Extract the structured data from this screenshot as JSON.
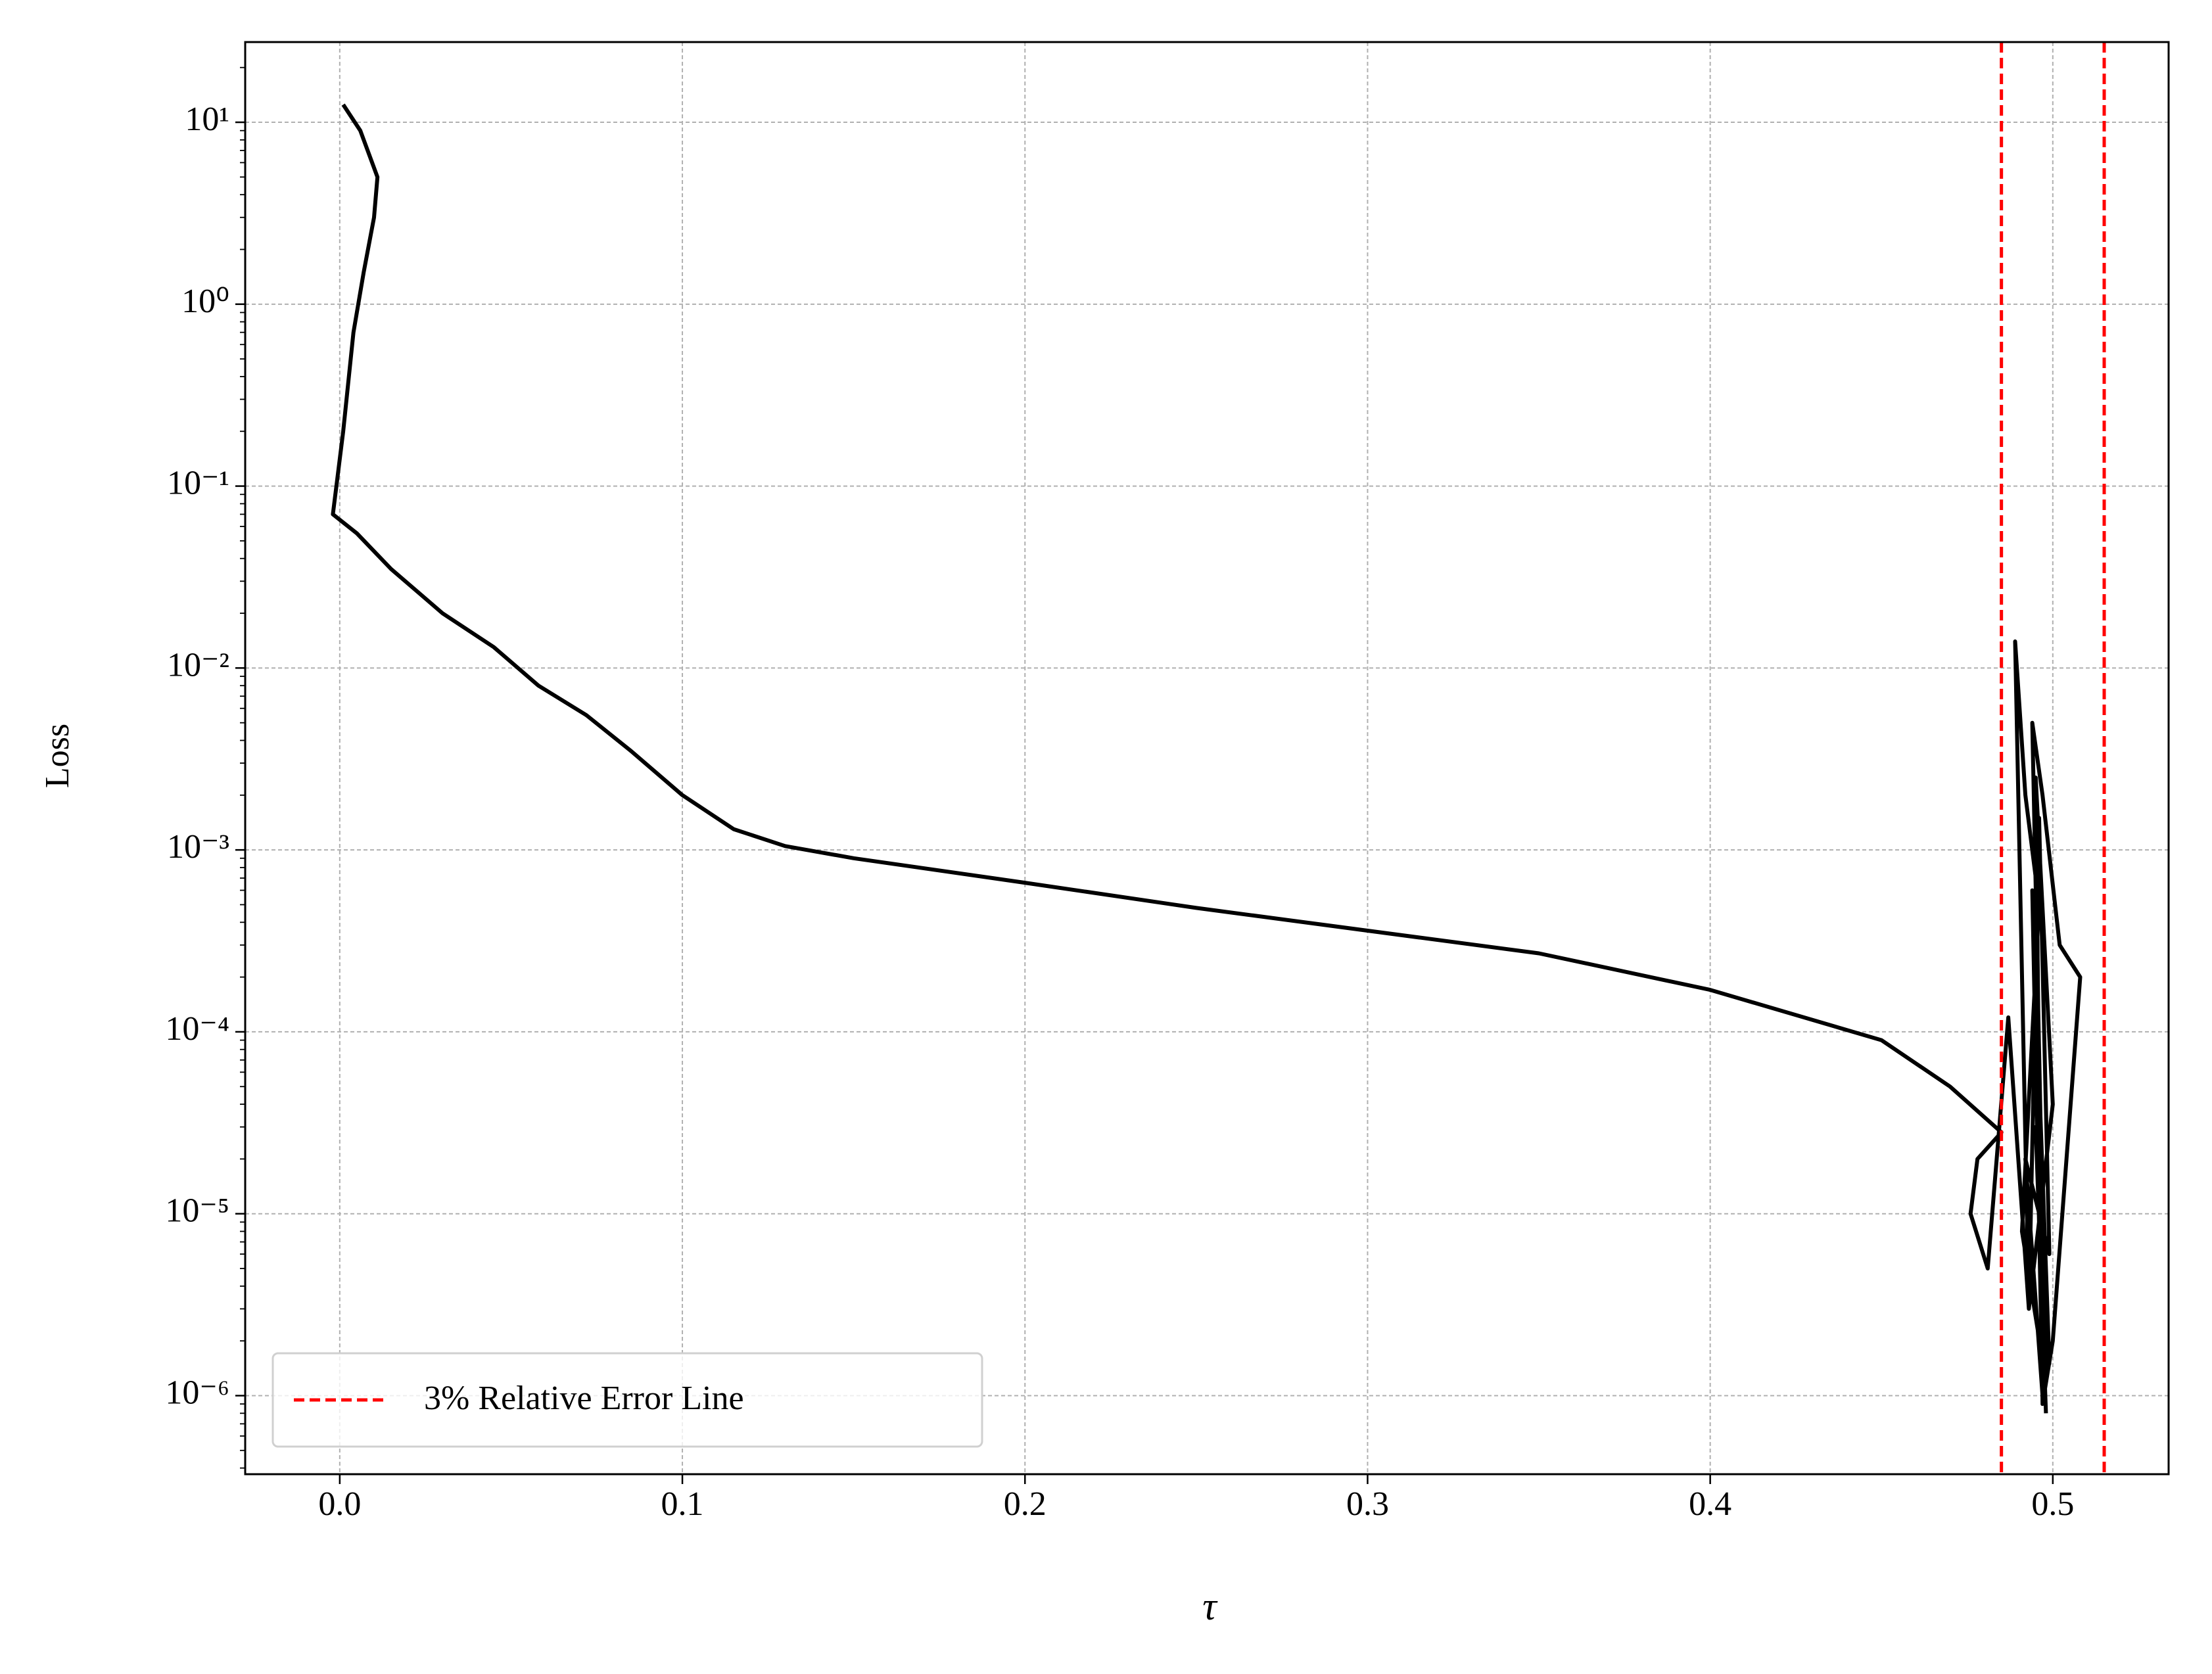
{
  "chart_data": {
    "type": "line",
    "x_label": "τ",
    "y_label": "Loss",
    "log_y": true,
    "grid": true,
    "legend_position": "lower left",
    "xlim": [
      -0.0276,
      0.5338
    ],
    "ylim": [
      3.7e-07,
      27.6
    ],
    "xticks": [
      {
        "value": 0,
        "label": "0.0"
      },
      0.1,
      0.2,
      0.3,
      0.4,
      0.5
    ],
    "yticks": [
      {
        "value": 1e-06,
        "label": "10⁻⁶"
      },
      {
        "value": 1e-05,
        "label": "10⁻⁵"
      },
      {
        "value": 0.0001,
        "label": "10⁻⁴"
      },
      {
        "value": 0.001,
        "label": "10⁻³"
      },
      {
        "value": 0.01,
        "label": "10⁻²"
      },
      {
        "value": 0.1,
        "label": "10⁻¹"
      },
      {
        "value": 1,
        "label": "10⁰"
      },
      {
        "value": 10,
        "label": "10¹"
      }
    ],
    "series": [
      {
        "color": "#000000",
        "x": [
          0.001,
          0.006,
          0.011,
          0.01,
          0.007,
          0.004,
          0.001,
          -0.002,
          0.005,
          0.015,
          0.03,
          0.045,
          0.058,
          0.072,
          0.085,
          0.1,
          0.115,
          0.13,
          0.15,
          0.2,
          0.25,
          0.3,
          0.35,
          0.4,
          0.45,
          0.47,
          0.485,
          0.478,
          0.476,
          0.481,
          0.487,
          0.493,
          0.489,
          0.492,
          0.496,
          0.491,
          0.498,
          0.494,
          0.497,
          0.502,
          0.508,
          0.5,
          0.497,
          0.495,
          0.5,
          0.493,
          0.496,
          0.499,
          0.492,
          0.497,
          0.494,
          0.499,
          0.495,
          0.498
        ],
        "y": [
          12.5,
          9,
          5,
          3,
          1.5,
          0.7,
          0.2,
          0.07,
          0.055,
          0.035,
          0.02,
          0.013,
          0.008,
          0.0055,
          0.0035,
          0.002,
          0.0013,
          0.00105,
          0.0009,
          0.00066,
          0.00048,
          0.00036,
          0.00027,
          0.00017,
          9e-05,
          5e-05,
          2.8e-05,
          2e-05,
          1e-05,
          5e-06,
          0.00012,
          3e-06,
          0.014,
          0.002,
          0.0005,
          8e-06,
          1.2e-06,
          0.005,
          0.002,
          0.0003,
          0.0002,
          2e-06,
          9e-07,
          0.0025,
          4e-05,
          3e-06,
          0.0015,
          6e-06,
          2e-05,
          1e-06,
          0.0006,
          1.5e-06,
          3e-05,
          8e-07
        ]
      }
    ],
    "reference_lines": {
      "name": "3% Relative Error Line",
      "color": "#ff0000",
      "x": [
        0.485,
        0.515
      ]
    }
  }
}
